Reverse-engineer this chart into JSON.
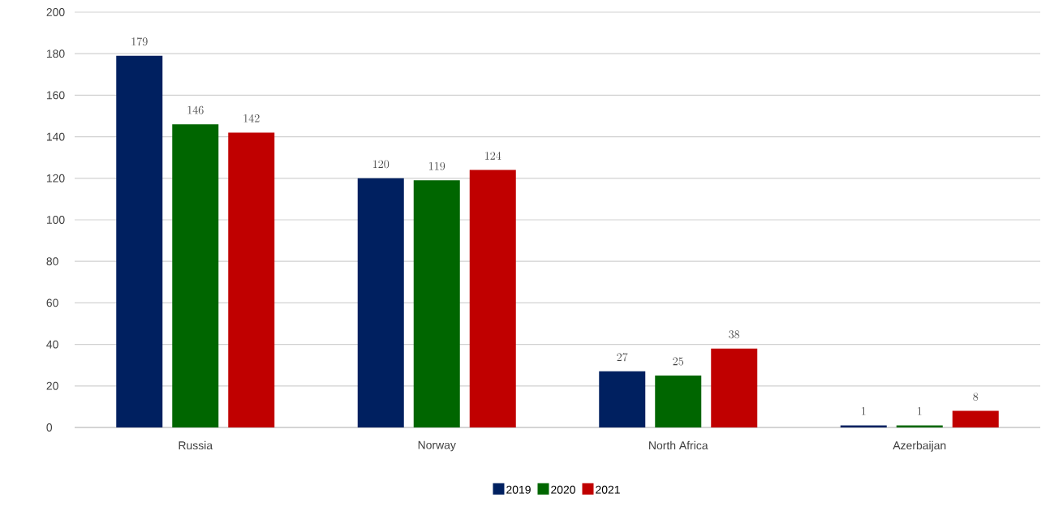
{
  "chart_data": {
    "type": "bar",
    "categories": [
      "Russia",
      "Norway",
      "North Africa",
      "Azerbaijan"
    ],
    "series": [
      {
        "name": "2019",
        "color": "#002060",
        "values": [
          179,
          120,
          27,
          1
        ]
      },
      {
        "name": "2020",
        "color": "#006600",
        "values": [
          146,
          119,
          25,
          1
        ]
      },
      {
        "name": "2021",
        "color": "#c00000",
        "values": [
          142,
          124,
          38,
          8
        ]
      }
    ],
    "ylim": [
      0,
      200
    ],
    "yticks": [
      0,
      20,
      40,
      60,
      80,
      100,
      120,
      140,
      160,
      180,
      200
    ],
    "grid": "y",
    "legend": "bottom",
    "data_labels": true
  }
}
